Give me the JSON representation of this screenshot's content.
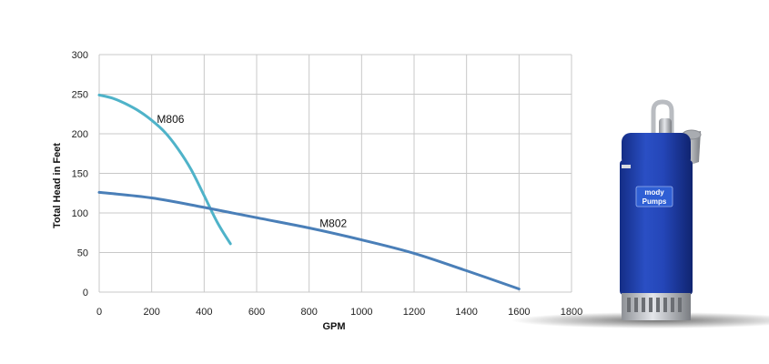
{
  "chart_data": {
    "type": "line",
    "title": "",
    "xlabel": "GPM",
    "ylabel": "Total Head  in  Feet",
    "xlim": [
      0,
      1800
    ],
    "ylim": [
      0,
      300
    ],
    "xticks": [
      0,
      200,
      400,
      600,
      800,
      1000,
      1200,
      1400,
      1600,
      1800
    ],
    "yticks": [
      0,
      50,
      100,
      150,
      200,
      250,
      300
    ],
    "grid": true,
    "legend": "none",
    "series": [
      {
        "name": "M806",
        "color": "#4fb3c9",
        "x": [
          0,
          50,
          100,
          150,
          200,
          250,
          300,
          350,
          400,
          450,
          500
        ],
        "y": [
          249,
          245,
          238,
          229,
          217,
          202,
          181,
          155,
          122,
          88,
          61
        ]
      },
      {
        "name": "M802",
        "color": "#4a7fb8",
        "x": [
          0,
          200,
          400,
          600,
          800,
          1000,
          1200,
          1400,
          1600
        ],
        "y": [
          126,
          119,
          107,
          94,
          81,
          66,
          49,
          27,
          4
        ]
      }
    ]
  },
  "product_image": {
    "name": "submersible pump",
    "logo_lines": [
      "mody",
      "Pumps"
    ],
    "body_color": "#1e3fa8"
  }
}
